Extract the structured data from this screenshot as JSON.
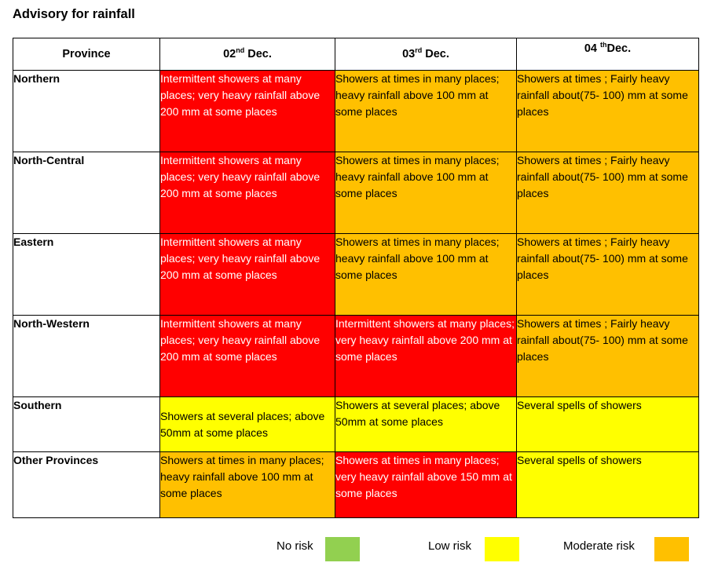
{
  "title": "Advisory for rainfall",
  "header": {
    "province": "Province",
    "d1_num": "02",
    "d1_sup": "nd",
    "d1_rest": " Dec.",
    "d2_num": "03",
    "d2_sup": "rd",
    "d2_rest": " Dec.",
    "d3_num": "04 ",
    "d3_sup": "th",
    "d3_rest": "Dec."
  },
  "rows": [
    {
      "province": "Northern",
      "cells": [
        {
          "text": "Intermittent showers at many places; very heavy rainfall above 200 mm at some places",
          "risk": "high",
          "color": "#ff0000"
        },
        {
          "text": "Showers at times in many places;  heavy rainfall above 100 mm at some places",
          "risk": "moderate",
          "color": "#ffc000"
        },
        {
          "text": "Showers at times ; Fairly heavy rainfall about(75- 100) mm at some places",
          "risk": "moderate",
          "color": "#ffc000"
        }
      ]
    },
    {
      "province": "North-Central",
      "cells": [
        {
          "text": "Intermittent showers at many places; very heavy rainfall above 200 mm at some places",
          "risk": "high",
          "color": "#ff0000"
        },
        {
          "text": "Showers at times in many places;  heavy rainfall above 100 mm at some places",
          "risk": "moderate",
          "color": "#ffc000"
        },
        {
          "text": "Showers at times ; Fairly heavy rainfall about(75- 100) mm at some places",
          "risk": "moderate",
          "color": "#ffc000"
        }
      ]
    },
    {
      "province": "Eastern",
      "cells": [
        {
          "text": "Intermittent showers at many places; very heavy rainfall above 200 mm at some places",
          "risk": "high",
          "color": "#ff0000"
        },
        {
          "text": "Showers at times in many places;  heavy rainfall above 100 mm at some places",
          "risk": "moderate",
          "color": "#ffc000"
        },
        {
          "text": "Showers at times ; Fairly heavy rainfall about(75- 100) mm at some places",
          "risk": "moderate",
          "color": "#ffc000"
        }
      ]
    },
    {
      "province": "North-Western",
      "cells": [
        {
          "text": "Intermittent showers at many places; very heavy rainfall above 200 mm at some places",
          "risk": "high",
          "color": "#ff0000"
        },
        {
          "text": "Intermittent showers at many places; very heavy rainfall above 200 mm at some places",
          "risk": "high",
          "color": "#ff0000"
        },
        {
          "text": "Showers at times ; Fairly heavy rainfall about(75- 100) mm at some places",
          "risk": "moderate",
          "color": "#ffc000"
        }
      ]
    },
    {
      "province": "Southern",
      "cells": [
        {
          "text": "Showers at several places; above 50mm at some places",
          "risk": "low",
          "color": "#ffff00"
        },
        {
          "text": "Showers at several places; above 50mm at some places",
          "risk": "low",
          "color": "#ffff00"
        },
        {
          "text": "Several spells of showers",
          "risk": "low",
          "color": "#ffff00"
        }
      ]
    },
    {
      "province": "Other Provinces",
      "cells": [
        {
          "text": "Showers at times in many places;  heavy rainfall above 100 mm at some places",
          "risk": "moderate",
          "color": "#ffc000"
        },
        {
          "text": "Showers at times in many places;  very heavy rainfall above 150 mm at some places",
          "risk": "high",
          "color": "#ff0000"
        },
        {
          "text": "Several spells of showers",
          "risk": "low",
          "color": "#ffff00"
        }
      ]
    }
  ],
  "legend": [
    {
      "label": "No risk",
      "color": "#92d050"
    },
    {
      "label": "Low risk",
      "color": "#ffff00"
    },
    {
      "label": "Moderate risk",
      "color": "#ffc000"
    }
  ]
}
